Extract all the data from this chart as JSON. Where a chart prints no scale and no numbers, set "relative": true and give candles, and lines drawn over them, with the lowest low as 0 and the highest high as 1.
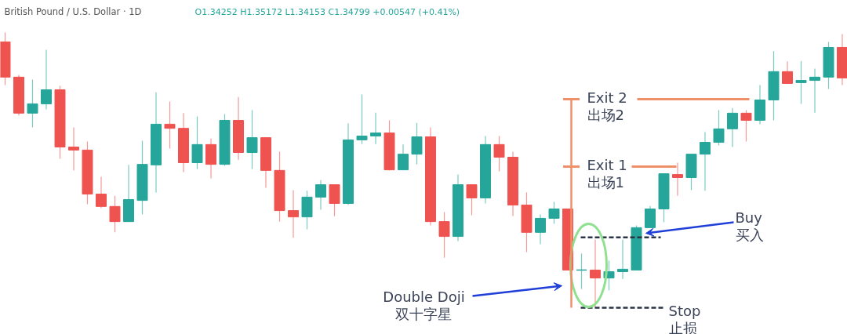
{
  "chart_data": {
    "type": "candlestick",
    "relative": true,
    "title": "British Pound / U.S. Dollar · 1D",
    "subtitle": "O1.34252 H1.35172 L1.34153 C1.34799 +0.00547 (+0.41%)",
    "categories": [
      null,
      null,
      null,
      null,
      null,
      null,
      null,
      null,
      null,
      null,
      null,
      null,
      null,
      null,
      null,
      null,
      null,
      null,
      null,
      null,
      null,
      null,
      null,
      null,
      null,
      null,
      null,
      null,
      null,
      null,
      null,
      null,
      null,
      null,
      null,
      null,
      null,
      null,
      null,
      null,
      null,
      null,
      null,
      null,
      null,
      null,
      null,
      null,
      null,
      null,
      null,
      null,
      null,
      null,
      null,
      null,
      null,
      null,
      null,
      null,
      null,
      null
    ],
    "ohlc": [
      [
        0.966,
        1.0,
        0.809,
        0.838
      ],
      [
        0.838,
        0.846,
        0.698,
        0.707
      ],
      [
        0.707,
        0.829,
        0.655,
        0.741
      ],
      [
        0.741,
        0.937,
        0.721,
        0.792
      ],
      [
        0.792,
        0.806,
        0.541,
        0.584
      ],
      [
        0.584,
        0.655,
        0.499,
        0.573
      ],
      [
        0.573,
        0.604,
        0.376,
        0.413
      ],
      [
        0.413,
        0.476,
        0.362,
        0.368
      ],
      [
        0.368,
        0.407,
        0.274,
        0.313
      ],
      [
        0.313,
        0.519,
        0.313,
        0.393
      ],
      [
        0.39,
        0.607,
        0.339,
        0.521
      ],
      [
        0.519,
        0.783,
        0.419,
        0.667
      ],
      [
        0.667,
        0.749,
        0.578,
        0.652
      ],
      [
        0.652,
        0.707,
        0.493,
        0.527
      ],
      [
        0.527,
        0.695,
        0.504,
        0.593
      ],
      [
        0.593,
        0.615,
        0.47,
        0.521
      ],
      [
        0.521,
        0.704,
        0.516,
        0.681
      ],
      [
        0.681,
        0.766,
        0.538,
        0.564
      ],
      [
        0.564,
        0.718,
        0.504,
        0.618
      ],
      [
        0.618,
        0.618,
        0.436,
        0.499
      ],
      [
        0.499,
        0.567,
        0.313,
        0.353
      ],
      [
        0.353,
        0.427,
        0.254,
        0.33
      ],
      [
        0.33,
        0.425,
        0.285,
        0.402
      ],
      [
        0.402,
        0.464,
        0.356,
        0.447
      ],
      [
        0.447,
        0.447,
        0.333,
        0.379
      ],
      [
        0.379,
        0.67,
        0.373,
        0.61
      ],
      [
        0.61,
        0.775,
        0.595,
        0.624
      ],
      [
        0.624,
        0.709,
        0.595,
        0.635
      ],
      [
        0.635,
        0.681,
        0.499,
        0.501
      ],
      [
        0.501,
        0.593,
        0.501,
        0.558
      ],
      [
        0.558,
        0.672,
        0.521,
        0.621
      ],
      [
        0.621,
        0.655,
        0.299,
        0.313
      ],
      [
        0.313,
        0.348,
        0.182,
        0.259
      ],
      [
        0.259,
        0.484,
        0.242,
        0.447
      ],
      [
        0.447,
        0.447,
        0.336,
        0.399
      ],
      [
        0.399,
        0.624,
        0.379,
        0.593
      ],
      [
        0.593,
        0.624,
        0.496,
        0.547
      ],
      [
        0.547,
        0.567,
        0.333,
        0.373
      ],
      [
        0.373,
        0.419,
        0.202,
        0.274
      ],
      [
        0.274,
        0.339,
        0.231,
        0.325
      ],
      [
        0.325,
        0.385,
        0.305,
        0.359
      ],
      [
        0.359,
        0.359,
        0.137,
        0.137
      ],
      [
        0.137,
        0.197,
        0.068,
        0.137
      ],
      [
        0.137,
        0.248,
        0.0,
        0.108
      ],
      [
        0.108,
        0.171,
        0.063,
        0.131
      ],
      [
        0.131,
        0.248,
        0.105,
        0.14
      ],
      [
        0.137,
        0.299,
        0.137,
        0.291
      ],
      [
        0.291,
        0.37,
        0.291,
        0.359
      ],
      [
        0.359,
        0.487,
        0.311,
        0.487
      ],
      [
        0.484,
        0.527,
        0.407,
        0.473
      ],
      [
        0.473,
        0.558,
        0.427,
        0.558
      ],
      [
        0.558,
        0.638,
        0.425,
        0.601
      ],
      [
        0.601,
        0.718,
        0.59,
        0.65
      ],
      [
        0.65,
        0.726,
        0.584,
        0.707
      ],
      [
        0.707,
        0.718,
        0.604,
        0.681
      ],
      [
        0.681,
        0.809,
        0.667,
        0.755
      ],
      [
        0.755,
        0.932,
        0.681,
        0.858
      ],
      [
        0.858,
        0.895,
        0.815,
        0.815
      ],
      [
        0.818,
        0.897,
        0.741,
        0.826
      ],
      [
        0.826,
        0.869,
        0.709,
        0.838
      ],
      [
        0.838,
        0.966,
        0.795,
        0.946
      ],
      [
        0.946,
        0.994,
        0.809,
        0.835
      ]
    ],
    "colors": [
      "#ef5350",
      "#ef5350",
      "#26a69a",
      "#26a69a",
      "#ef5350",
      "#ef5350",
      "#ef5350",
      "#ef5350",
      "#ef5350",
      "#26a69a",
      "#26a69a",
      "#26a69a",
      "#ef5350",
      "#ef5350",
      "#26a69a",
      "#ef5350",
      "#26a69a",
      "#ef5350",
      "#26a69a",
      "#ef5350",
      "#ef5350",
      "#ef5350",
      "#26a69a",
      "#26a69a",
      "#ef5350",
      "#26a69a",
      "#26a69a",
      "#26a69a",
      "#ef5350",
      "#26a69a",
      "#26a69a",
      "#ef5350",
      "#ef5350",
      "#26a69a",
      "#ef5350",
      "#26a69a",
      "#ef5350",
      "#ef5350",
      "#ef5350",
      "#26a69a",
      "#26a69a",
      "#ef5350",
      "#26a69a",
      "#ef5350",
      "#26a69a",
      "#26a69a",
      "#26a69a",
      "#26a69a",
      "#26a69a",
      "#ef5350",
      "#26a69a",
      "#26a69a",
      "#26a69a",
      "#26a69a",
      "#ef5350",
      "#26a69a",
      "#26a69a",
      "#ef5350",
      "#26a69a",
      "#26a69a",
      "#26a69a",
      "#ef5350"
    ],
    "ref_lines": [
      {
        "axis": "y",
        "value": 0.758,
        "label": "Exit 2\n出场2",
        "color": "#f0906a"
      },
      {
        "axis": "y",
        "value": 0.513,
        "label": "Exit 1\n出场1",
        "color": "#f0906a"
      },
      {
        "axis": "y",
        "value": 0.256,
        "label": "Buy\n买入",
        "color": "#2a3446",
        "line_style": "dashed"
      },
      {
        "axis": "y",
        "value": 0.0,
        "label": "Stop\n止损",
        "color": "#2a3446",
        "line_style": "dashed"
      }
    ],
    "annotations": [
      "Double Doji\n双十字星"
    ]
  }
}
